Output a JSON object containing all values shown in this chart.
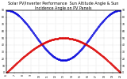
{
  "title": "Solar PV/Inverter Performance  Sun Altitude Angle & Sun Incidence Angle on PV Panels",
  "title_fontsize": 3.5,
  "blue_label": "Sun Incidence Angle on PV Panels",
  "red_label": "Sun Altitude Angle",
  "x_start": 6.0,
  "x_end": 20.0,
  "x_ticks": [
    6,
    7,
    8,
    9,
    10,
    11,
    12,
    13,
    14,
    15,
    16,
    17,
    18,
    19,
    20
  ],
  "y_min": 0,
  "y_max": 90,
  "y_ticks": [
    0,
    10,
    20,
    30,
    40,
    50,
    60,
    70,
    80,
    90
  ],
  "bg_color": "#ffffff",
  "grid_color": "#bbbbbb",
  "blue_color": "#0000dd",
  "red_color": "#dd0000",
  "solar_noon": 13.0,
  "peak_altitude": 50,
  "peak_incidence_edges": 90,
  "trough_incidence": 18
}
